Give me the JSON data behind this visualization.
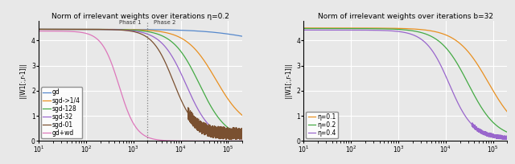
{
  "title_left": "Norm of irrelevant weights over iterations η=0.2",
  "title_right": "Norm of irrelevant weights over iterations b=32",
  "ylabel": "||W1[:,r-1]||",
  "ylim": [
    0,
    4.8
  ],
  "xlim_log": [
    10,
    200000
  ],
  "phase_line_x": 2000,
  "phase1_label": "Phase 1",
  "phase2_label": "Phase 2",
  "left_lines": [
    {
      "label": "gd",
      "color": "#5588cc",
      "style": "solid",
      "start_val": 4.45,
      "end_val": 3.6,
      "inflect": 500000.0,
      "steep": 1.8,
      "noise_amp": 0.0,
      "noise_floor": 0.0
    },
    {
      "label": "sgd->1/4",
      "color": "#e89020",
      "style": "solid",
      "start_val": 4.45,
      "end_val": 0.45,
      "inflect": 55000.0,
      "steep": 3.2,
      "noise_amp": 0.0,
      "noise_floor": 0.0
    },
    {
      "label": "sgd-128",
      "color": "#44aa44",
      "style": "solid",
      "start_val": 4.45,
      "end_val": 0.05,
      "inflect": 25000.0,
      "steep": 3.5,
      "noise_amp": 0.0,
      "noise_floor": 0.0
    },
    {
      "label": "sgd-32",
      "color": "#9966cc",
      "style": "solid",
      "start_val": 4.45,
      "end_val": 0.03,
      "inflect": 13000.0,
      "steep": 3.8,
      "noise_amp": 0.0,
      "noise_floor": 0.0
    },
    {
      "label": "sgd-01",
      "color": "#7a5030",
      "style": "solid",
      "start_val": 4.45,
      "end_val": 0.28,
      "inflect": 7000.0,
      "steep": 4.5,
      "noise_amp": 0.25,
      "noise_floor": 0.25
    },
    {
      "label": "gd+wd",
      "color": "#dd77bb",
      "style": "solid",
      "start_val": 4.38,
      "end_val": 0.0,
      "inflect": 500.0,
      "steep": 5.5,
      "noise_amp": 0.0,
      "noise_floor": 0.0
    }
  ],
  "right_lines": [
    {
      "label": "η=0.1",
      "color": "#e89020",
      "style": "solid",
      "start_val": 4.5,
      "end_val": 0.15,
      "inflect": 80000.0,
      "steep": 3.0,
      "noise_amp": 0.0,
      "noise_floor": 0.0
    },
    {
      "label": "η=0.2",
      "color": "#44aa44",
      "style": "solid",
      "start_val": 4.48,
      "end_val": 0.08,
      "inflect": 30000.0,
      "steep": 3.3,
      "noise_amp": 0.0,
      "noise_floor": 0.0
    },
    {
      "label": "η=0.4",
      "color": "#9966cc",
      "style": "solid",
      "start_val": 4.42,
      "end_val": 0.1,
      "inflect": 12000.0,
      "steep": 4.0,
      "noise_amp": 0.08,
      "noise_floor": 0.08
    }
  ],
  "bg_color": "#e8e8e8",
  "axes_bg": "#e8e8e8",
  "grid_color": "white",
  "legend_fontsize": 5.5,
  "title_fontsize": 6.5,
  "tick_fontsize": 5.5,
  "label_fontsize": 5.5
}
